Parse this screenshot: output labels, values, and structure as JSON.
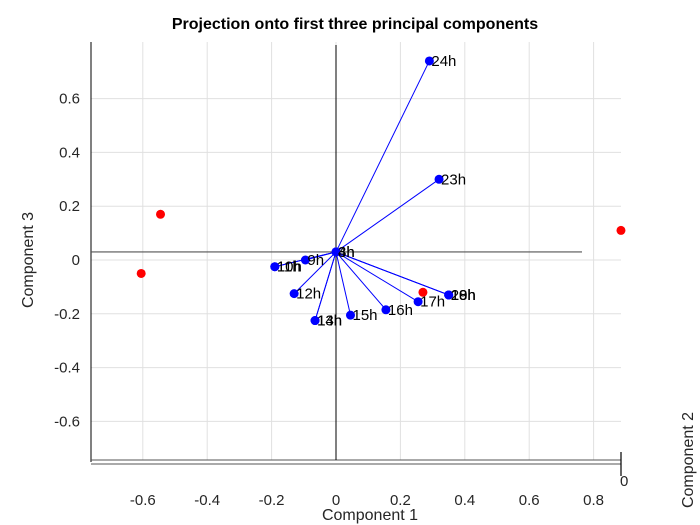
{
  "chart_data": {
    "type": "scatter",
    "title": "Projection onto first three principal components",
    "xlabel": "Component 1",
    "ylabel": "Component 3",
    "zlabel": "Component 2",
    "z_tick_label": "0",
    "xlim": [
      -0.75,
      0.88
    ],
    "ylim": [
      -0.75,
      0.82
    ],
    "x_ticks": [
      -0.6,
      -0.4,
      -0.2,
      0,
      0.2,
      0.4,
      0.6,
      0.8
    ],
    "x_tick_labels": [
      "-0.6",
      "-0.4",
      "-0.2",
      "0",
      "0.2",
      "0.4",
      "0.6",
      "0.8"
    ],
    "y_ticks": [
      0.6,
      0.4,
      0.2,
      0,
      -0.2,
      -0.4,
      -0.6
    ],
    "y_tick_labels": [
      "0.6",
      "0.4",
      "0.2",
      "0",
      "-0.2",
      "-0.4",
      "-0.6"
    ],
    "grid": true,
    "colors": {
      "vectors": "#0000ff",
      "scores": "#ff0000",
      "axes": "#000000",
      "grid": "#e0e0e0"
    },
    "origin": [
      0,
      0.03
    ],
    "vectors": [
      {
        "label": "24h",
        "x": 0.29,
        "y": 0.74
      },
      {
        "label": "23h",
        "x": 0.32,
        "y": 0.3
      },
      {
        "label": "4h",
        "x": 0.0,
        "y": 0.03
      },
      {
        "label": "3h",
        "x": 0.0,
        "y": 0.03
      },
      {
        "label": "9h",
        "x": -0.095,
        "y": 0.0
      },
      {
        "label": "10h",
        "x": -0.19,
        "y": -0.025
      },
      {
        "label": "11h",
        "x": -0.19,
        "y": -0.025
      },
      {
        "label": "12h",
        "x": -0.13,
        "y": -0.125
      },
      {
        "label": "13h",
        "x": -0.065,
        "y": -0.225
      },
      {
        "label": "14h",
        "x": -0.065,
        "y": -0.225
      },
      {
        "label": "15h",
        "x": 0.045,
        "y": -0.205
      },
      {
        "label": "16h",
        "x": 0.155,
        "y": -0.185
      },
      {
        "label": "17h",
        "x": 0.255,
        "y": -0.155
      },
      {
        "label": "18h",
        "x": 0.35,
        "y": -0.13
      },
      {
        "label": "19h",
        "x": 0.35,
        "y": -0.13
      },
      {
        "label": "20h",
        "x": 0.35,
        "y": -0.13
      }
    ],
    "scores": [
      {
        "x": -0.545,
        "y": 0.17
      },
      {
        "x": -0.605,
        "y": -0.05
      },
      {
        "x": 0.885,
        "y": 0.11
      },
      {
        "x": 0.27,
        "y": -0.12
      }
    ]
  }
}
